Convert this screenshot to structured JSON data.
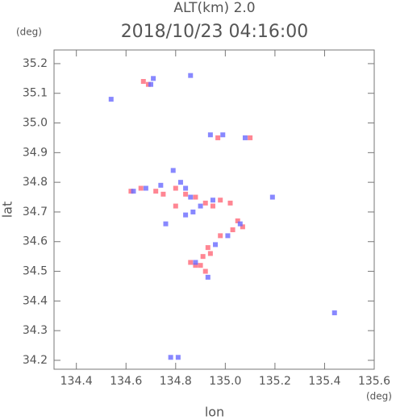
{
  "chart_data": {
    "type": "scatter",
    "title": "2018/10/23 04:16:00",
    "subtitle": "ALT(km) 2.0",
    "x_label": "lon",
    "y_label": "lat",
    "x_unit": "(deg)",
    "y_unit": "(deg)",
    "xlim": [
      134.31,
      135.6
    ],
    "ylim": [
      34.17,
      35.246
    ],
    "xticks": [
      134.4,
      134.6,
      134.8,
      {
        "value": 135,
        "label": "135.0"
      },
      135.2,
      135.4,
      135.6
    ],
    "yticks": [
      34.2,
      34.3,
      34.4,
      34.5,
      34.6,
      34.7,
      34.8,
      34.9,
      {
        "value": 35,
        "label": "35.0"
      },
      35.1,
      35.2
    ],
    "series": [
      {
        "color": "#ff6878",
        "x": [
          134.67,
          134.69,
          134.62,
          134.66,
          134.72,
          134.75,
          134.8,
          134.84,
          134.88,
          134.92,
          134.95,
          134.98,
          135.05,
          135.07,
          135.03,
          134.98,
          134.93,
          134.91,
          134.9,
          134.92,
          134.88,
          134.86,
          134.94,
          134.8,
          134.97,
          135.02,
          135.1
        ],
        "values": [
          35.14,
          35.13,
          34.77,
          34.78,
          34.77,
          34.76,
          34.78,
          34.76,
          34.75,
          34.73,
          34.72,
          34.74,
          34.67,
          34.65,
          34.64,
          34.62,
          34.58,
          34.55,
          34.52,
          34.5,
          34.52,
          34.53,
          34.56,
          34.72,
          34.95,
          34.73,
          34.95
        ]
      },
      {
        "color": "#6a6aff",
        "x": [
          134.54,
          134.71,
          134.7,
          134.86,
          134.94,
          134.99,
          135.08,
          134.63,
          134.68,
          134.74,
          134.79,
          134.82,
          134.86,
          134.9,
          134.95,
          135.19,
          135.06,
          135.01,
          134.96,
          134.88,
          134.93,
          135.44,
          134.78,
          134.81,
          134.84,
          134.87,
          134.76,
          134.84
        ],
        "values": [
          35.08,
          35.15,
          35.13,
          35.16,
          34.96,
          34.96,
          34.95,
          34.77,
          34.78,
          34.79,
          34.84,
          34.8,
          34.75,
          34.72,
          34.74,
          34.75,
          34.66,
          34.62,
          34.59,
          34.53,
          34.48,
          34.36,
          34.21,
          34.21,
          34.78,
          34.7,
          34.66,
          34.69
        ]
      }
    ]
  }
}
